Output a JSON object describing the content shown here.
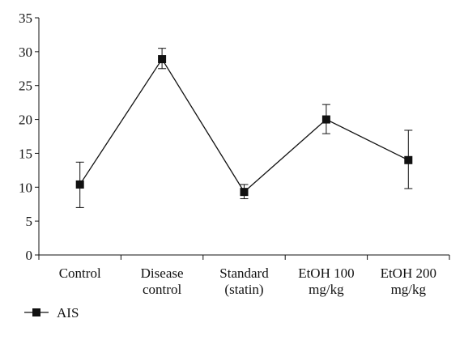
{
  "chart_data": {
    "type": "line",
    "categories": [
      [
        "Control"
      ],
      [
        "Disease",
        "control"
      ],
      [
        "Standard",
        "(statin)"
      ],
      [
        "EtOH 100",
        "mg/kg"
      ],
      [
        "EtOH 200",
        "mg/kg"
      ]
    ],
    "series": [
      {
        "name": "AIS",
        "values": [
          10.4,
          28.9,
          9.3,
          20.0,
          14.0
        ],
        "error_low": [
          7.0,
          27.5,
          8.3,
          17.9,
          9.8
        ],
        "error_high": [
          13.7,
          30.5,
          10.4,
          22.2,
          18.4
        ],
        "marker": "square",
        "color": "#111111"
      }
    ],
    "ylim": [
      0,
      35
    ],
    "yticks": [
      0,
      5,
      10,
      15,
      20,
      25,
      30,
      35
    ],
    "grid": false,
    "legend": "bottom-left"
  }
}
